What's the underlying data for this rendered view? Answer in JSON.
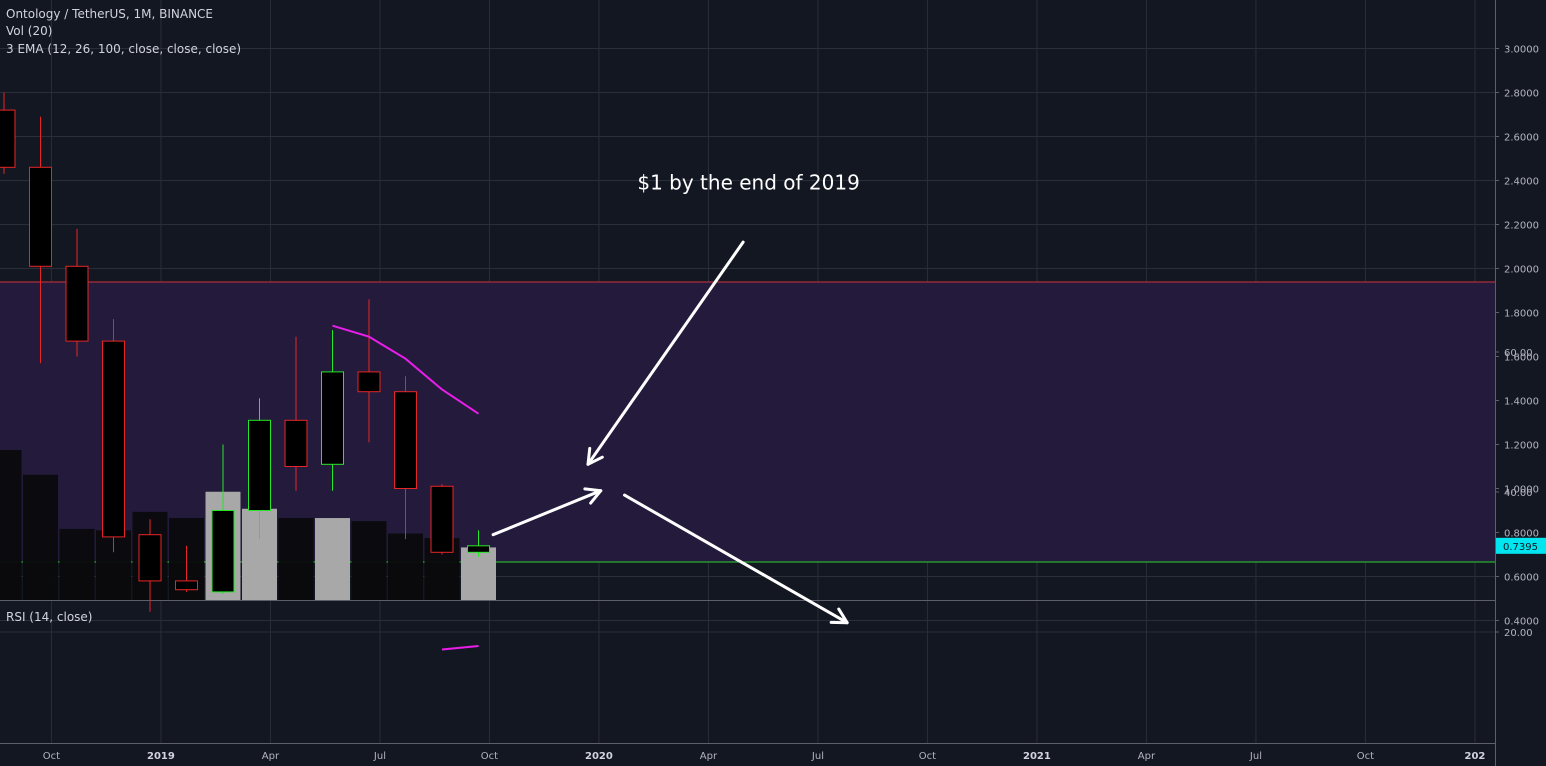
{
  "header": {
    "symbol_line": "Ontology / TetherUS, 1M, BINANCE",
    "vol_line": "Vol (20)",
    "ema_line": "3 EMA (12, 26, 100, close, close, close)"
  },
  "rsi_panel": {
    "label": "RSI (14, close)"
  },
  "colors": {
    "background": "#131722",
    "grid": "#2a2e39",
    "up": "#26e626",
    "down": "#e62626",
    "ema": "#e91ee9",
    "volume_up": "#a8a8a8",
    "volume_down": "#0a0a0d",
    "price_badge": "#00e5ef",
    "rsi_band": "#241a3c",
    "rsi_upper_line": "#d03040",
    "rsi_lower_line": "#2bd32b",
    "rsi_line": "#e91ee9"
  },
  "price_badge": {
    "value": "0.7395"
  },
  "annotation": {
    "text": "$1 by the end of 2019"
  },
  "chart_data": {
    "type": "candlestick",
    "price_axis": {
      "range": [
        0.3,
        3.0
      ],
      "ticks": [
        "0.4000",
        "0.6000",
        "0.8000",
        "1.0000",
        "1.2000",
        "1.4000",
        "1.6000",
        "1.8000",
        "2.0000",
        "2.2000",
        "2.4000",
        "2.6000",
        "2.8000",
        "3.0000"
      ]
    },
    "rsi_axis": {
      "range": [
        15,
        73
      ],
      "ticks": [
        "20.00",
        "40.00",
        "60.00"
      ],
      "upper": 70,
      "lower": 30
    },
    "time_labels": [
      {
        "text": "Oct",
        "index": 1.3,
        "bold": false
      },
      {
        "text": "2019",
        "index": 4.3,
        "bold": true
      },
      {
        "text": "Apr",
        "index": 7.3,
        "bold": false
      },
      {
        "text": "Jul",
        "index": 10.3,
        "bold": false
      },
      {
        "text": "Oct",
        "index": 13.3,
        "bold": false
      },
      {
        "text": "2020",
        "index": 16.3,
        "bold": true
      },
      {
        "text": "Apr",
        "index": 19.3,
        "bold": false
      },
      {
        "text": "Jul",
        "index": 22.3,
        "bold": false
      },
      {
        "text": "Oct",
        "index": 25.3,
        "bold": false
      },
      {
        "text": "2021",
        "index": 28.3,
        "bold": true
      },
      {
        "text": "Apr",
        "index": 31.3,
        "bold": false
      },
      {
        "text": "Jul",
        "index": 34.3,
        "bold": false
      },
      {
        "text": "Oct",
        "index": 37.3,
        "bold": false
      },
      {
        "text": "202",
        "index": 40.3,
        "bold": true
      }
    ],
    "candles": [
      {
        "month": "2018-07",
        "open": 2.72,
        "high": 2.8,
        "low": 2.43,
        "close": 2.46
      },
      {
        "month": "2018-08",
        "open": 2.46,
        "high": 2.69,
        "low": 1.57,
        "close": 2.01
      },
      {
        "month": "2018-09",
        "open": 2.01,
        "high": 2.18,
        "low": 1.6,
        "close": 1.67
      },
      {
        "month": "2018-10",
        "open": 1.67,
        "high": 1.77,
        "low": 0.71,
        "close": 0.78
      },
      {
        "month": "2018-11",
        "open": 0.79,
        "high": 0.86,
        "low": 0.44,
        "close": 0.58
      },
      {
        "month": "2018-12",
        "open": 0.58,
        "high": 0.74,
        "low": 0.53,
        "close": 0.54
      },
      {
        "month": "2019-01",
        "open": 0.53,
        "high": 1.2,
        "low": 0.52,
        "close": 0.9
      },
      {
        "month": "2019-02",
        "open": 0.9,
        "high": 1.41,
        "low": 0.77,
        "close": 1.31
      },
      {
        "month": "2019-03",
        "open": 1.31,
        "high": 1.69,
        "low": 0.99,
        "close": 1.1
      },
      {
        "month": "2019-04",
        "open": 1.11,
        "high": 1.72,
        "low": 0.99,
        "close": 1.53
      },
      {
        "month": "2019-05",
        "open": 1.53,
        "high": 1.86,
        "low": 1.21,
        "close": 1.44
      },
      {
        "month": "2019-06",
        "open": 1.44,
        "high": 1.51,
        "low": 0.77,
        "close": 1.0
      },
      {
        "month": "2019-07",
        "open": 1.01,
        "high": 1.02,
        "low": 0.7,
        "close": 0.71
      },
      {
        "month": "2019-08",
        "open": 0.71,
        "high": 0.81,
        "low": 0.69,
        "close": 0.7395
      }
    ],
    "volume": [
      0.97,
      0.81,
      0.46,
      0.45,
      0.57,
      0.53,
      0.7,
      0.59,
      0.53,
      0.53,
      0.51,
      0.43,
      0.4,
      0.34
    ],
    "ema": [
      {
        "index": 9,
        "value": 1.74
      },
      {
        "index": 10,
        "value": 1.69
      },
      {
        "index": 11,
        "value": 1.59
      },
      {
        "index": 12,
        "value": 1.45
      },
      {
        "index": 13,
        "value": 1.34
      }
    ],
    "rsi": [
      {
        "index": 12,
        "value": 17.5
      },
      {
        "index": 13,
        "value": 18.0
      }
    ],
    "arrows": [
      {
        "from": [
          13.4,
          0.79
        ],
        "to": [
          16.35,
          0.99
        ]
      },
      {
        "from": [
          20.25,
          2.12
        ],
        "to": [
          16.0,
          1.11
        ]
      },
      {
        "from": [
          17.0,
          0.97
        ],
        "to": [
          23.1,
          0.39
        ]
      }
    ],
    "annotation_position": {
      "index": 20.4,
      "price": 2.36
    }
  }
}
